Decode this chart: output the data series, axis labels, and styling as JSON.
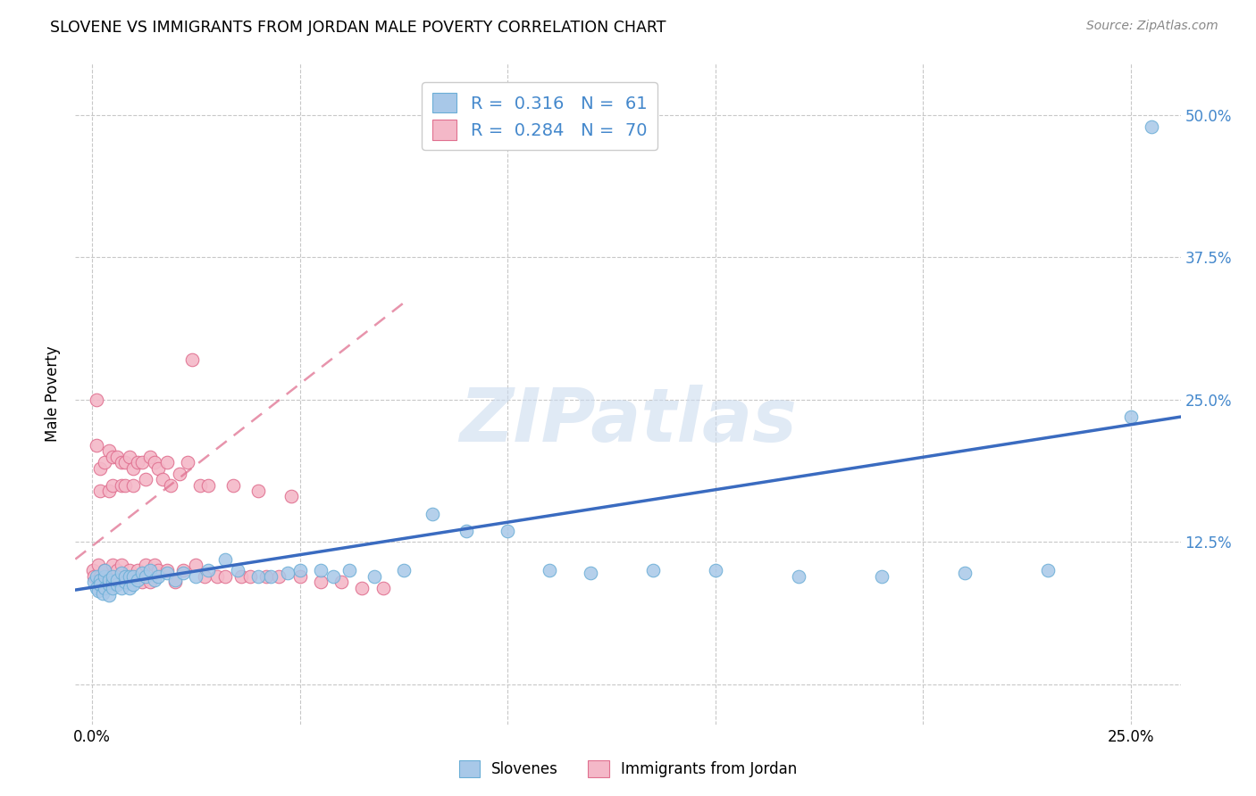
{
  "title": "SLOVENE VS IMMIGRANTS FROM JORDAN MALE POVERTY CORRELATION CHART",
  "source": "Source: ZipAtlas.com",
  "ylabel_label": "Male Poverty",
  "xlim": [
    -0.004,
    0.262
  ],
  "ylim": [
    -0.035,
    0.545
  ],
  "slovene_color": "#a8c8e8",
  "slovene_edge_color": "#6baed6",
  "jordan_color": "#f4b8c8",
  "jordan_edge_color": "#e07090",
  "slovene_line_color": "#3a6bc0",
  "jordan_line_color": "#e07090",
  "grid_color": "#c8c8c8",
  "R_slovene": 0.316,
  "N_slovene": 61,
  "R_jordan": 0.284,
  "N_jordan": 70,
  "legend_text_color": "#4488cc",
  "legend_labels": [
    "Slovenes",
    "Immigrants from Jordan"
  ],
  "watermark": "ZIPatlas",
  "watermark_color": "#ccdcef",
  "background_color": "#ffffff",
  "slovene_x": [
    0.0005,
    0.001,
    0.001,
    0.0015,
    0.002,
    0.002,
    0.0025,
    0.003,
    0.003,
    0.003,
    0.004,
    0.004,
    0.004,
    0.005,
    0.005,
    0.005,
    0.006,
    0.006,
    0.007,
    0.007,
    0.008,
    0.008,
    0.009,
    0.009,
    0.01,
    0.01,
    0.011,
    0.012,
    0.013,
    0.014,
    0.015,
    0.016,
    0.018,
    0.02,
    0.022,
    0.025,
    0.028,
    0.032,
    0.035,
    0.04,
    0.043,
    0.047,
    0.05,
    0.055,
    0.058,
    0.062,
    0.068,
    0.075,
    0.082,
    0.09,
    0.1,
    0.11,
    0.12,
    0.135,
    0.15,
    0.17,
    0.19,
    0.21,
    0.23,
    0.25,
    0.255
  ],
  "slovene_y": [
    0.09,
    0.085,
    0.095,
    0.082,
    0.092,
    0.088,
    0.08,
    0.095,
    0.085,
    0.1,
    0.088,
    0.092,
    0.078,
    0.09,
    0.085,
    0.095,
    0.088,
    0.092,
    0.085,
    0.098,
    0.09,
    0.095,
    0.085,
    0.095,
    0.088,
    0.095,
    0.092,
    0.098,
    0.095,
    0.1,
    0.092,
    0.095,
    0.098,
    0.092,
    0.098,
    0.095,
    0.1,
    0.11,
    0.1,
    0.095,
    0.095,
    0.098,
    0.1,
    0.1,
    0.095,
    0.1,
    0.095,
    0.1,
    0.15,
    0.135,
    0.135,
    0.1,
    0.098,
    0.1,
    0.1,
    0.095,
    0.095,
    0.098,
    0.1,
    0.235,
    0.49
  ],
  "jordan_x": [
    0.0002,
    0.0005,
    0.001,
    0.001,
    0.0015,
    0.002,
    0.002,
    0.002,
    0.003,
    0.003,
    0.003,
    0.004,
    0.004,
    0.004,
    0.005,
    0.005,
    0.005,
    0.006,
    0.006,
    0.006,
    0.007,
    0.007,
    0.007,
    0.008,
    0.008,
    0.008,
    0.009,
    0.009,
    0.01,
    0.01,
    0.01,
    0.011,
    0.011,
    0.012,
    0.012,
    0.013,
    0.013,
    0.014,
    0.014,
    0.015,
    0.015,
    0.016,
    0.016,
    0.017,
    0.018,
    0.018,
    0.019,
    0.02,
    0.021,
    0.022,
    0.023,
    0.024,
    0.025,
    0.026,
    0.027,
    0.028,
    0.03,
    0.032,
    0.034,
    0.036,
    0.038,
    0.04,
    0.042,
    0.045,
    0.048,
    0.05,
    0.055,
    0.06,
    0.065,
    0.07
  ],
  "jordan_y": [
    0.1,
    0.095,
    0.25,
    0.21,
    0.105,
    0.19,
    0.17,
    0.095,
    0.1,
    0.195,
    0.09,
    0.205,
    0.17,
    0.095,
    0.105,
    0.2,
    0.175,
    0.1,
    0.2,
    0.09,
    0.195,
    0.175,
    0.105,
    0.195,
    0.09,
    0.175,
    0.2,
    0.1,
    0.19,
    0.095,
    0.175,
    0.1,
    0.195,
    0.09,
    0.195,
    0.105,
    0.18,
    0.2,
    0.09,
    0.195,
    0.105,
    0.19,
    0.1,
    0.18,
    0.195,
    0.1,
    0.175,
    0.09,
    0.185,
    0.1,
    0.195,
    0.285,
    0.105,
    0.175,
    0.095,
    0.175,
    0.095,
    0.095,
    0.175,
    0.095,
    0.095,
    0.17,
    0.095,
    0.095,
    0.165,
    0.095,
    0.09,
    0.09,
    0.085,
    0.085
  ],
  "slovene_line_x": [
    -0.004,
    0.262
  ],
  "slovene_line_y": [
    0.083,
    0.235
  ],
  "jordan_line_x": [
    -0.004,
    0.075
  ],
  "jordan_line_y": [
    0.11,
    0.335
  ]
}
